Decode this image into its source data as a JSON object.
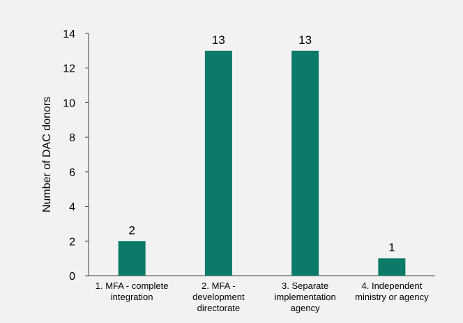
{
  "chart_data": {
    "type": "bar",
    "categories": [
      [
        "1. MFA - complete",
        "integration"
      ],
      [
        "2. MFA -",
        "development",
        "directorate"
      ],
      [
        "3. Separate",
        "implementation",
        "agency"
      ],
      [
        "4. Independent",
        "ministry or agency"
      ]
    ],
    "values": [
      2,
      13,
      13,
      1
    ],
    "data_labels": [
      "2",
      "13",
      "13",
      "1"
    ],
    "title": "",
    "xlabel": "",
    "ylabel": "Number of DAC donors",
    "ylim": [
      0,
      14
    ],
    "yticks": [
      0,
      2,
      4,
      6,
      8,
      10,
      12,
      14
    ],
    "grid": false,
    "legend": "none",
    "colors": {
      "bar": "#0c7a68",
      "background": "#f2f2f2",
      "axis": "#404040",
      "text": "#000000"
    }
  }
}
